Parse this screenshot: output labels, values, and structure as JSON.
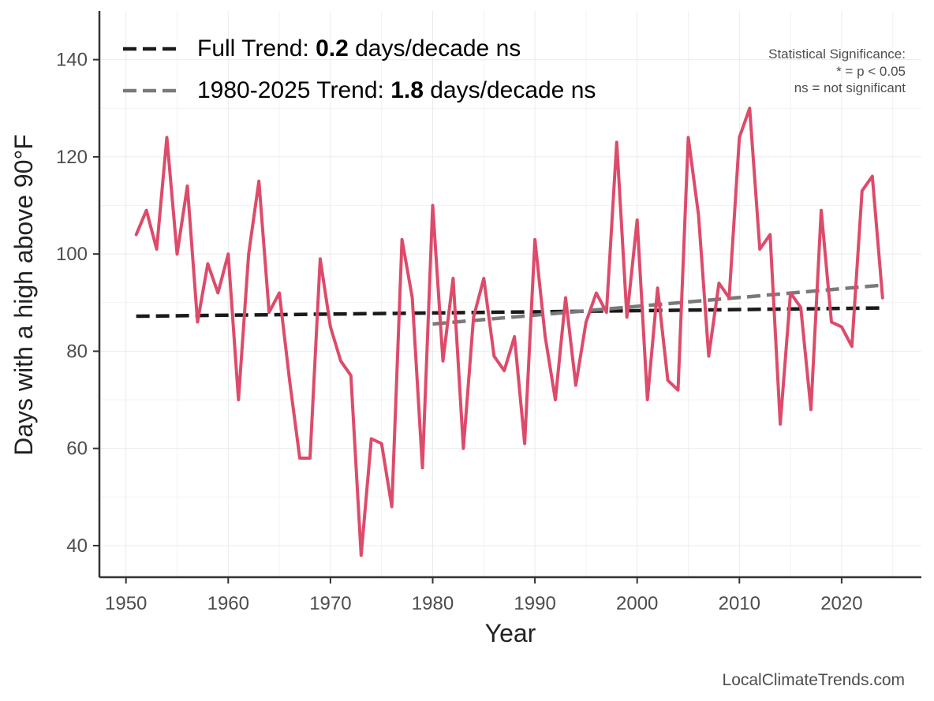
{
  "chart_data": {
    "type": "line",
    "xlabel": "Year",
    "ylabel": "Days with a high above 90°F",
    "xlim": [
      1947.4,
      2027.8
    ],
    "ylim": [
      33.5,
      150
    ],
    "x_ticks": [
      1950,
      1960,
      1970,
      1980,
      1990,
      2000,
      2010,
      2020
    ],
    "y_ticks": [
      40,
      60,
      80,
      100,
      120,
      140
    ],
    "grid": true,
    "series": [
      {
        "name": "Days above 90°F",
        "color": "#dd4b6b",
        "x": [
          1951,
          1952,
          1953,
          1954,
          1955,
          1956,
          1957,
          1958,
          1959,
          1960,
          1961,
          1962,
          1963,
          1964,
          1965,
          1966,
          1967,
          1968,
          1969,
          1970,
          1971,
          1972,
          1973,
          1974,
          1975,
          1976,
          1977,
          1978,
          1979,
          1980,
          1981,
          1982,
          1983,
          1984,
          1985,
          1986,
          1987,
          1988,
          1989,
          1990,
          1991,
          1992,
          1993,
          1994,
          1995,
          1996,
          1997,
          1998,
          1999,
          2000,
          2001,
          2002,
          2003,
          2004,
          2005,
          2006,
          2007,
          2008,
          2009,
          2010,
          2011,
          2012,
          2013,
          2014,
          2015,
          2016,
          2017,
          2018,
          2019,
          2020,
          2021,
          2022,
          2023,
          2024
        ],
        "values": [
          104,
          109,
          101,
          124,
          100,
          114,
          86,
          98,
          92,
          100,
          70,
          100,
          115,
          88,
          92,
          74,
          58,
          58,
          99,
          85,
          78,
          75,
          38,
          62,
          61,
          48,
          103,
          91,
          56,
          110,
          78,
          95,
          60,
          87,
          95,
          79,
          76,
          83,
          61,
          103,
          83,
          70,
          91,
          73,
          86,
          92,
          88,
          123,
          87,
          107,
          70,
          93,
          74,
          72,
          124,
          108,
          79,
          94,
          91,
          124,
          130,
          101,
          104,
          65,
          92,
          89,
          68,
          109,
          86,
          85,
          81,
          113,
          116,
          91
        ]
      }
    ],
    "trends": [
      {
        "name": "Full Trend",
        "label_prefix": "Full Trend: ",
        "value_label": "0.2",
        "label_suffix": " days/decade ns",
        "color": "#1a1a1a",
        "x": [
          1951,
          2024
        ],
        "y": [
          87.2,
          88.9
        ]
      },
      {
        "name": "1980-2025 Trend",
        "label_prefix": "1980-2025 Trend: ",
        "value_label": "1.8",
        "label_suffix": " days/decade ns",
        "color": "#7a7a7a",
        "x": [
          1980,
          2024
        ],
        "y": [
          85.6,
          93.6
        ]
      }
    ],
    "significance_note": [
      "Statistical Significance:",
      "* = p < 0.05",
      "ns = not significant"
    ],
    "credit": "LocalClimateTrends.com"
  }
}
